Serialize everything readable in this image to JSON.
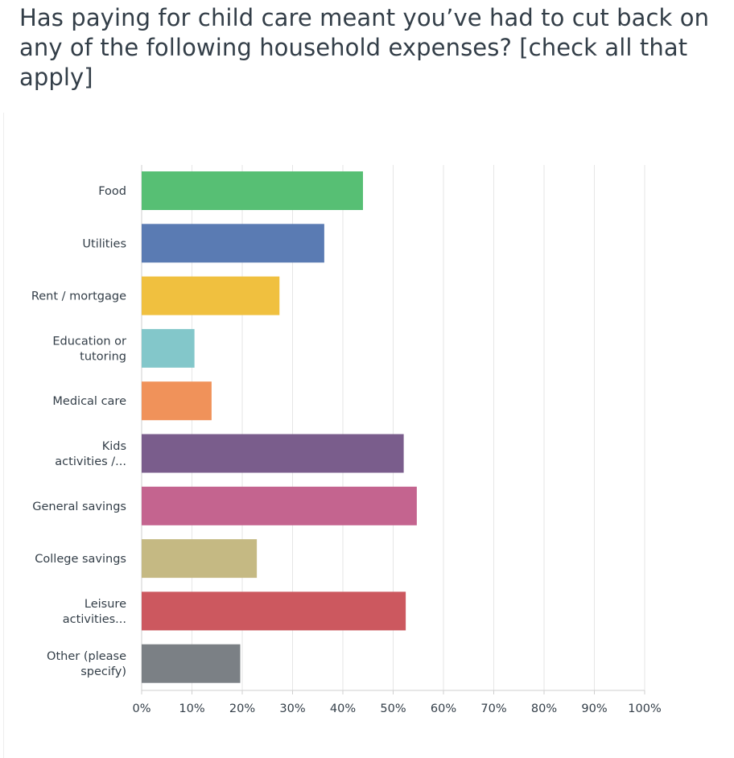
{
  "title": "Has paying for child care meant you’ve had to cut back on any of the following household expenses? [check all that apply]",
  "chart_data": {
    "type": "bar",
    "orientation": "horizontal",
    "title": "Has paying for child care meant you’ve had to cut back on any of the following household expenses? [check all that apply]",
    "xlabel": "",
    "ylabel": "",
    "xlim": [
      0,
      100
    ],
    "grid": true,
    "categories": [
      "Food",
      "Utilities",
      "Rent / mortgage",
      "Education or tutoring",
      "Medical care",
      "Kids activities /...",
      "General savings",
      "College savings",
      "Leisure activities...",
      "Other (please specify)"
    ],
    "category_lines": [
      [
        "Food"
      ],
      [
        "Utilities"
      ],
      [
        "Rent / mortgage"
      ],
      [
        "Education or",
        "tutoring"
      ],
      [
        "Medical care"
      ],
      [
        "Kids",
        "activities /..."
      ],
      [
        "General savings"
      ],
      [
        "College savings"
      ],
      [
        "Leisure",
        "activities..."
      ],
      [
        "Other (please",
        "specify)"
      ]
    ],
    "values": [
      44,
      36.3,
      27.4,
      10.5,
      13.9,
      52.1,
      54.7,
      22.9,
      52.5,
      19.6
    ],
    "colors": [
      "#57bf74",
      "#5a7bb3",
      "#f0c03f",
      "#83c7ca",
      "#f0925a",
      "#7a5d8c",
      "#c4648f",
      "#c5b983",
      "#cc585f",
      "#7b8085"
    ],
    "ticks": [
      "0%",
      "10%",
      "20%",
      "30%",
      "40%",
      "50%",
      "60%",
      "70%",
      "80%",
      "90%",
      "100%"
    ]
  }
}
